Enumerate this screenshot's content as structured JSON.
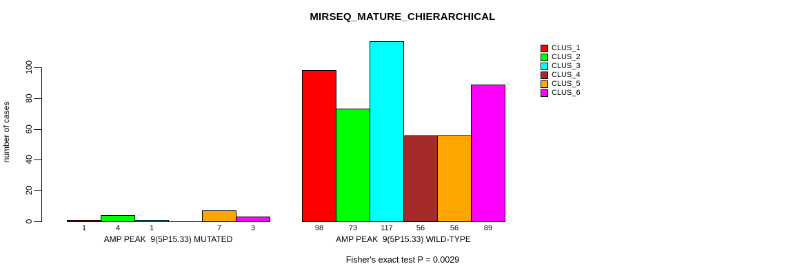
{
  "chart_data": {
    "type": "bar",
    "title": "MIRSEQ_MATURE_CHIERARCHICAL",
    "ylabel": "number of cases",
    "xlabel": "",
    "ylim": [
      0,
      117
    ],
    "y_ticks": [
      0,
      20,
      40,
      60,
      80,
      100
    ],
    "grid": false,
    "legend_position": "top-right",
    "legend": [
      {
        "name": "CLUS_1",
        "color": "#FF0000"
      },
      {
        "name": "CLUS_2",
        "color": "#00FF00"
      },
      {
        "name": "CLUS_3",
        "color": "#00FFFF"
      },
      {
        "name": "CLUS_4",
        "color": "#A52A2A"
      },
      {
        "name": "CLUS_5",
        "color": "#FFA500"
      },
      {
        "name": "CLUS_6",
        "color": "#FF00FF"
      }
    ],
    "categories": [
      "CLUS_1",
      "CLUS_2",
      "CLUS_3",
      "CLUS_4",
      "CLUS_5",
      "CLUS_6"
    ],
    "groups": [
      {
        "label": "AMP PEAK  9(5P15.33) MUTATED",
        "values": [
          1,
          4,
          1,
          0,
          7,
          3
        ],
        "bar_labels": [
          "1",
          "4",
          "1",
          "",
          "7",
          "3"
        ]
      },
      {
        "label": "AMP PEAK  9(5P15.33) WILD-TYPE",
        "values": [
          98,
          73,
          117,
          56,
          56,
          89
        ],
        "bar_labels": [
          "98",
          "73",
          "117",
          "56",
          "56",
          "89"
        ]
      }
    ],
    "footnote": "Fisher's exact test P = 0.0029"
  }
}
